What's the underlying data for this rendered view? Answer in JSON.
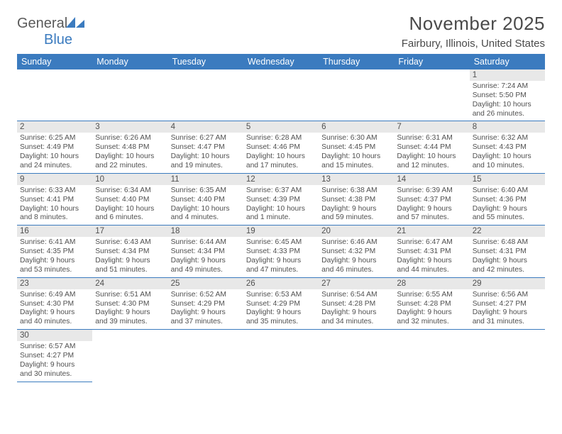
{
  "logo": {
    "text_a": "General",
    "text_b": "Blue"
  },
  "title": "November 2025",
  "location": "Fairbury, Illinois, United States",
  "colors": {
    "header_bg": "#3b7bbf",
    "header_text": "#ffffff",
    "daynum_bg": "#e8e8e8",
    "rule": "#3b7bbf",
    "body_text": "#505050",
    "page_bg": "#ffffff"
  },
  "typography": {
    "title_fontsize": 26,
    "location_fontsize": 15,
    "dayhead_fontsize": 12.5,
    "daynum_fontsize": 11.5,
    "body_fontsize": 10.3
  },
  "day_headers": [
    "Sunday",
    "Monday",
    "Tuesday",
    "Wednesday",
    "Thursday",
    "Friday",
    "Saturday"
  ],
  "weeks": [
    [
      {
        "empty": true
      },
      {
        "empty": true
      },
      {
        "empty": true
      },
      {
        "empty": true
      },
      {
        "empty": true
      },
      {
        "empty": true
      },
      {
        "num": "1",
        "sunrise": "Sunrise: 7:24 AM",
        "sunset": "Sunset: 5:50 PM",
        "day_a": "Daylight: 10 hours",
        "day_b": "and 26 minutes."
      }
    ],
    [
      {
        "num": "2",
        "sunrise": "Sunrise: 6:25 AM",
        "sunset": "Sunset: 4:49 PM",
        "day_a": "Daylight: 10 hours",
        "day_b": "and 24 minutes."
      },
      {
        "num": "3",
        "sunrise": "Sunrise: 6:26 AM",
        "sunset": "Sunset: 4:48 PM",
        "day_a": "Daylight: 10 hours",
        "day_b": "and 22 minutes."
      },
      {
        "num": "4",
        "sunrise": "Sunrise: 6:27 AM",
        "sunset": "Sunset: 4:47 PM",
        "day_a": "Daylight: 10 hours",
        "day_b": "and 19 minutes."
      },
      {
        "num": "5",
        "sunrise": "Sunrise: 6:28 AM",
        "sunset": "Sunset: 4:46 PM",
        "day_a": "Daylight: 10 hours",
        "day_b": "and 17 minutes."
      },
      {
        "num": "6",
        "sunrise": "Sunrise: 6:30 AM",
        "sunset": "Sunset: 4:45 PM",
        "day_a": "Daylight: 10 hours",
        "day_b": "and 15 minutes."
      },
      {
        "num": "7",
        "sunrise": "Sunrise: 6:31 AM",
        "sunset": "Sunset: 4:44 PM",
        "day_a": "Daylight: 10 hours",
        "day_b": "and 12 minutes."
      },
      {
        "num": "8",
        "sunrise": "Sunrise: 6:32 AM",
        "sunset": "Sunset: 4:43 PM",
        "day_a": "Daylight: 10 hours",
        "day_b": "and 10 minutes."
      }
    ],
    [
      {
        "num": "9",
        "sunrise": "Sunrise: 6:33 AM",
        "sunset": "Sunset: 4:41 PM",
        "day_a": "Daylight: 10 hours",
        "day_b": "and 8 minutes."
      },
      {
        "num": "10",
        "sunrise": "Sunrise: 6:34 AM",
        "sunset": "Sunset: 4:40 PM",
        "day_a": "Daylight: 10 hours",
        "day_b": "and 6 minutes."
      },
      {
        "num": "11",
        "sunrise": "Sunrise: 6:35 AM",
        "sunset": "Sunset: 4:40 PM",
        "day_a": "Daylight: 10 hours",
        "day_b": "and 4 minutes."
      },
      {
        "num": "12",
        "sunrise": "Sunrise: 6:37 AM",
        "sunset": "Sunset: 4:39 PM",
        "day_a": "Daylight: 10 hours",
        "day_b": "and 1 minute."
      },
      {
        "num": "13",
        "sunrise": "Sunrise: 6:38 AM",
        "sunset": "Sunset: 4:38 PM",
        "day_a": "Daylight: 9 hours",
        "day_b": "and 59 minutes."
      },
      {
        "num": "14",
        "sunrise": "Sunrise: 6:39 AM",
        "sunset": "Sunset: 4:37 PM",
        "day_a": "Daylight: 9 hours",
        "day_b": "and 57 minutes."
      },
      {
        "num": "15",
        "sunrise": "Sunrise: 6:40 AM",
        "sunset": "Sunset: 4:36 PM",
        "day_a": "Daylight: 9 hours",
        "day_b": "and 55 minutes."
      }
    ],
    [
      {
        "num": "16",
        "sunrise": "Sunrise: 6:41 AM",
        "sunset": "Sunset: 4:35 PM",
        "day_a": "Daylight: 9 hours",
        "day_b": "and 53 minutes."
      },
      {
        "num": "17",
        "sunrise": "Sunrise: 6:43 AM",
        "sunset": "Sunset: 4:34 PM",
        "day_a": "Daylight: 9 hours",
        "day_b": "and 51 minutes."
      },
      {
        "num": "18",
        "sunrise": "Sunrise: 6:44 AM",
        "sunset": "Sunset: 4:34 PM",
        "day_a": "Daylight: 9 hours",
        "day_b": "and 49 minutes."
      },
      {
        "num": "19",
        "sunrise": "Sunrise: 6:45 AM",
        "sunset": "Sunset: 4:33 PM",
        "day_a": "Daylight: 9 hours",
        "day_b": "and 47 minutes."
      },
      {
        "num": "20",
        "sunrise": "Sunrise: 6:46 AM",
        "sunset": "Sunset: 4:32 PM",
        "day_a": "Daylight: 9 hours",
        "day_b": "and 46 minutes."
      },
      {
        "num": "21",
        "sunrise": "Sunrise: 6:47 AM",
        "sunset": "Sunset: 4:31 PM",
        "day_a": "Daylight: 9 hours",
        "day_b": "and 44 minutes."
      },
      {
        "num": "22",
        "sunrise": "Sunrise: 6:48 AM",
        "sunset": "Sunset: 4:31 PM",
        "day_a": "Daylight: 9 hours",
        "day_b": "and 42 minutes."
      }
    ],
    [
      {
        "num": "23",
        "sunrise": "Sunrise: 6:49 AM",
        "sunset": "Sunset: 4:30 PM",
        "day_a": "Daylight: 9 hours",
        "day_b": "and 40 minutes."
      },
      {
        "num": "24",
        "sunrise": "Sunrise: 6:51 AM",
        "sunset": "Sunset: 4:30 PM",
        "day_a": "Daylight: 9 hours",
        "day_b": "and 39 minutes."
      },
      {
        "num": "25",
        "sunrise": "Sunrise: 6:52 AM",
        "sunset": "Sunset: 4:29 PM",
        "day_a": "Daylight: 9 hours",
        "day_b": "and 37 minutes."
      },
      {
        "num": "26",
        "sunrise": "Sunrise: 6:53 AM",
        "sunset": "Sunset: 4:29 PM",
        "day_a": "Daylight: 9 hours",
        "day_b": "and 35 minutes."
      },
      {
        "num": "27",
        "sunrise": "Sunrise: 6:54 AM",
        "sunset": "Sunset: 4:28 PM",
        "day_a": "Daylight: 9 hours",
        "day_b": "and 34 minutes."
      },
      {
        "num": "28",
        "sunrise": "Sunrise: 6:55 AM",
        "sunset": "Sunset: 4:28 PM",
        "day_a": "Daylight: 9 hours",
        "day_b": "and 32 minutes."
      },
      {
        "num": "29",
        "sunrise": "Sunrise: 6:56 AM",
        "sunset": "Sunset: 4:27 PM",
        "day_a": "Daylight: 9 hours",
        "day_b": "and 31 minutes."
      }
    ],
    [
      {
        "num": "30",
        "sunrise": "Sunrise: 6:57 AM",
        "sunset": "Sunset: 4:27 PM",
        "day_a": "Daylight: 9 hours",
        "day_b": "and 30 minutes."
      },
      {
        "empty": true,
        "trailing": true
      },
      {
        "empty": true,
        "trailing": true
      },
      {
        "empty": true,
        "trailing": true
      },
      {
        "empty": true,
        "trailing": true
      },
      {
        "empty": true,
        "trailing": true
      },
      {
        "empty": true,
        "trailing": true
      }
    ]
  ]
}
